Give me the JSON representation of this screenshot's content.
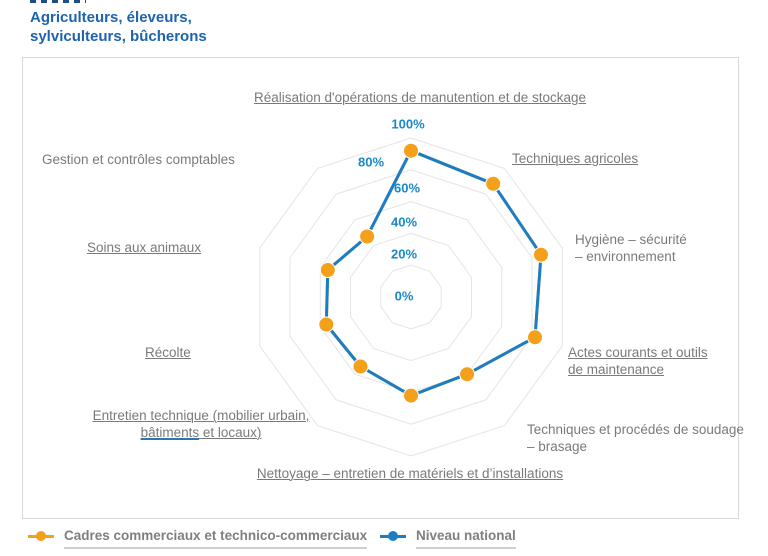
{
  "header": {
    "title_line1": "Agriculteurs, éleveurs,",
    "title_line2": "sylviculteurs, bûcherons"
  },
  "chart_data": {
    "type": "radar",
    "categories": [
      "Réalisation d'opérations de manutention et de stockage",
      "Techniques agricoles",
      "Hygiène – sécurité – environnement",
      "Actes courants et outils de maintenance",
      "Techniques et procédés de soudage – brasage",
      "Nettoyage – entretien de matériels et d’installations",
      "Entretien technique (mobilier urbain, bâtiments et locaux)",
      "Récolte",
      "Soins aux animaux",
      "Gestion et contrôles comptables"
    ],
    "series": [
      {
        "name": "Cadres commerciaux et technico-commerciaux",
        "color": "#F5A01B",
        "values": [
          92,
          88,
          86,
          82,
          60,
          62,
          54,
          56,
          55,
          47
        ]
      },
      {
        "name": "Niveau national",
        "color": "#1B7EC4",
        "values": [
          92,
          88,
          86,
          82,
          60,
          62,
          54,
          56,
          55,
          47
        ]
      }
    ],
    "axis_range": [
      0,
      100
    ],
    "ring_percents": [
      20,
      40,
      60,
      80,
      100
    ],
    "tick_labels": [
      "0%",
      "20%",
      "40%",
      "60%",
      "80%",
      "100%"
    ],
    "grid": "concentric decagon rings, no radial spokes",
    "legend_position": "bottom"
  },
  "axis_ticks": [
    "100%",
    "80%",
    "60%",
    "40%",
    "20%",
    "0%"
  ],
  "cat_labels": {
    "realisation": {
      "lines": [
        "Réalisation d'opérations de manutention et de stockage"
      ]
    },
    "techniques_agricoles": {
      "lines": [
        "Techniques agricoles"
      ]
    },
    "hygiene": {
      "lines": [
        "Hygiène – sécurité",
        "– environnement"
      ]
    },
    "actes": {
      "lines": [
        "Actes courants et outils",
        "de maintenance"
      ]
    },
    "soudage": {
      "lines": [
        "Techniques et procédés de soudage",
        "– brasage"
      ]
    },
    "nettoyage": {
      "lines": [
        "Nettoyage – entretien de matériels et d’installations"
      ]
    },
    "entretien": {
      "line1": "Entretien technique (mobilier urbain,",
      "line2_word": "bâtiments",
      "line2_rest": " et locaux)"
    },
    "recolte": {
      "lines": [
        "Récolte"
      ]
    },
    "soins": {
      "lines": [
        "Soins aux animaux"
      ]
    },
    "gestion": {
      "lines": [
        "Gestion et contrôles comptables"
      ]
    }
  },
  "legend": {
    "items": [
      {
        "label": "Cadres commerciaux et technico-commerciaux",
        "color": "#F5A01B"
      },
      {
        "label": "Niveau national",
        "color": "#1B7EC4"
      }
    ]
  },
  "colors": {
    "title": "#1D63AE",
    "tick_labels": "#1987C9",
    "category_labels": "#7A7A7A",
    "grid": "#E4E4E4",
    "frame": "#D9D9D9",
    "series_orange": "#F5A01B",
    "series_blue": "#1B7EC4"
  }
}
